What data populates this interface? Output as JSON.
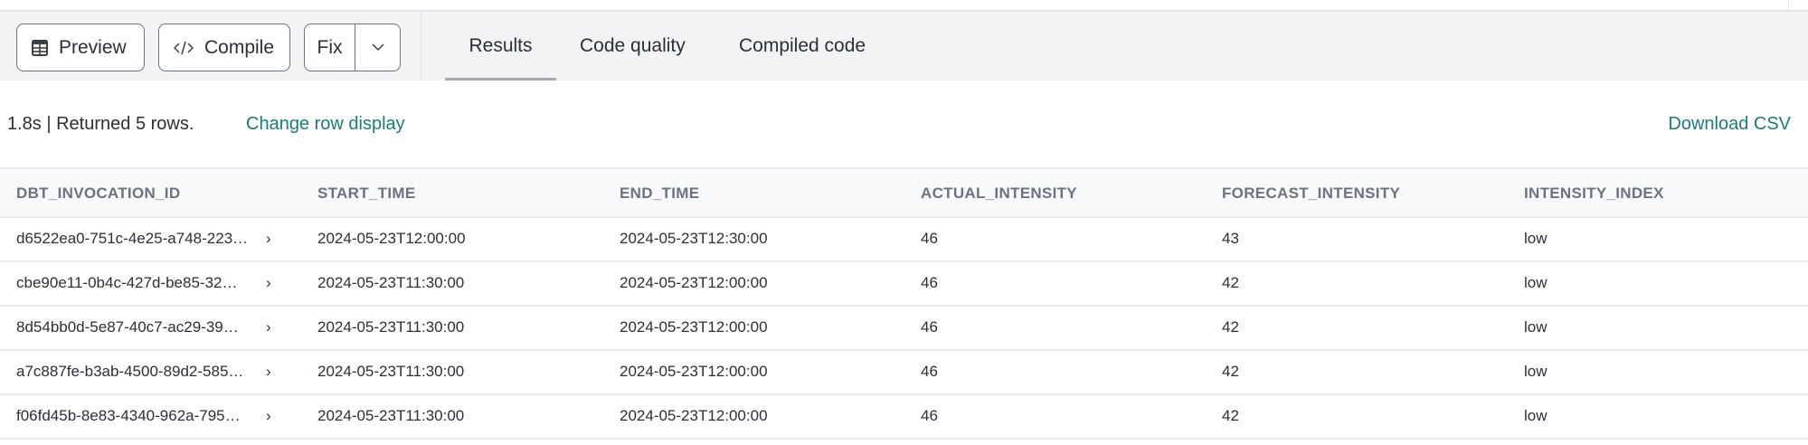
{
  "toolbar": {
    "preview_label": "Preview",
    "preview_icon": "table-icon",
    "compile_label": "Compile",
    "compile_icon": "code-icon",
    "fix_label": "Fix",
    "fix_dropdown_icon": "chevron-down-icon"
  },
  "tabs": [
    {
      "label": "Results",
      "active": true
    },
    {
      "label": "Code quality",
      "active": false
    },
    {
      "label": "Compiled code",
      "active": false
    }
  ],
  "status": {
    "text": "1.8s | Returned 5 rows.",
    "change_row_display": "Change row display",
    "download_csv": "Download CSV"
  },
  "colors": {
    "link": "#177e78",
    "toolbar_bg": "#f2f3f5",
    "header_text": "#6b7280"
  },
  "table": {
    "columns": [
      "DBT_INVOCATION_ID",
      "START_TIME",
      "END_TIME",
      "ACTUAL_INTENSITY",
      "FORECAST_INTENSITY",
      "INTENSITY_INDEX"
    ],
    "rows": [
      [
        "d6522ea0-751c-4e25-a748-223…",
        "2024-05-23T12:00:00",
        "2024-05-23T12:30:00",
        "46",
        "43",
        "low"
      ],
      [
        "cbe90e11-0b4c-427d-be85-32…",
        "2024-05-23T11:30:00",
        "2024-05-23T12:00:00",
        "46",
        "42",
        "low"
      ],
      [
        "8d54bb0d-5e87-40c7-ac29-39…",
        "2024-05-23T11:30:00",
        "2024-05-23T12:00:00",
        "46",
        "42",
        "low"
      ],
      [
        "a7c887fe-b3ab-4500-89d2-585…",
        "2024-05-23T11:30:00",
        "2024-05-23T12:00:00",
        "46",
        "42",
        "low"
      ],
      [
        "f06fd45b-8e83-4340-962a-795…",
        "2024-05-23T11:30:00",
        "2024-05-23T12:00:00",
        "46",
        "42",
        "low"
      ]
    ]
  }
}
